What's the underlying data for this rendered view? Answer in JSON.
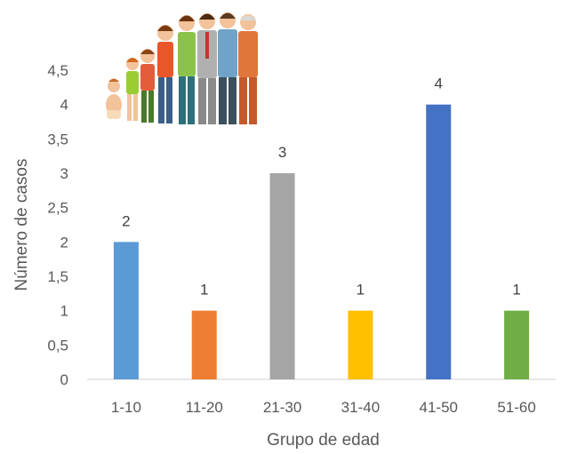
{
  "chart_data": {
    "type": "bar",
    "categories": [
      "1-10",
      "11-20",
      "21-30",
      "31-40",
      "41-50",
      "51-60"
    ],
    "values": [
      2,
      1,
      3,
      1,
      4,
      1
    ],
    "data_labels": [
      "2",
      "1",
      "3",
      "1",
      "4",
      "1"
    ],
    "bar_colors": [
      "#5b9bd5",
      "#ed7d31",
      "#a5a5a5",
      "#ffc000",
      "#4472c4",
      "#70ad47"
    ],
    "y_ticks": [
      0,
      0.5,
      1,
      1.5,
      2,
      2.5,
      3,
      3.5,
      4,
      4.5
    ],
    "y_tick_labels": [
      "0",
      "0,5",
      "1",
      "1,5",
      "2",
      "2,5",
      "3",
      "3,5",
      "4",
      "4,5"
    ],
    "ylim": [
      0,
      4.5
    ],
    "xlabel": "Grupo de edad",
    "ylabel": "Número de casos",
    "grid": false,
    "legend": "none"
  },
  "illustration": {
    "icon": "people-ages-illustration"
  }
}
